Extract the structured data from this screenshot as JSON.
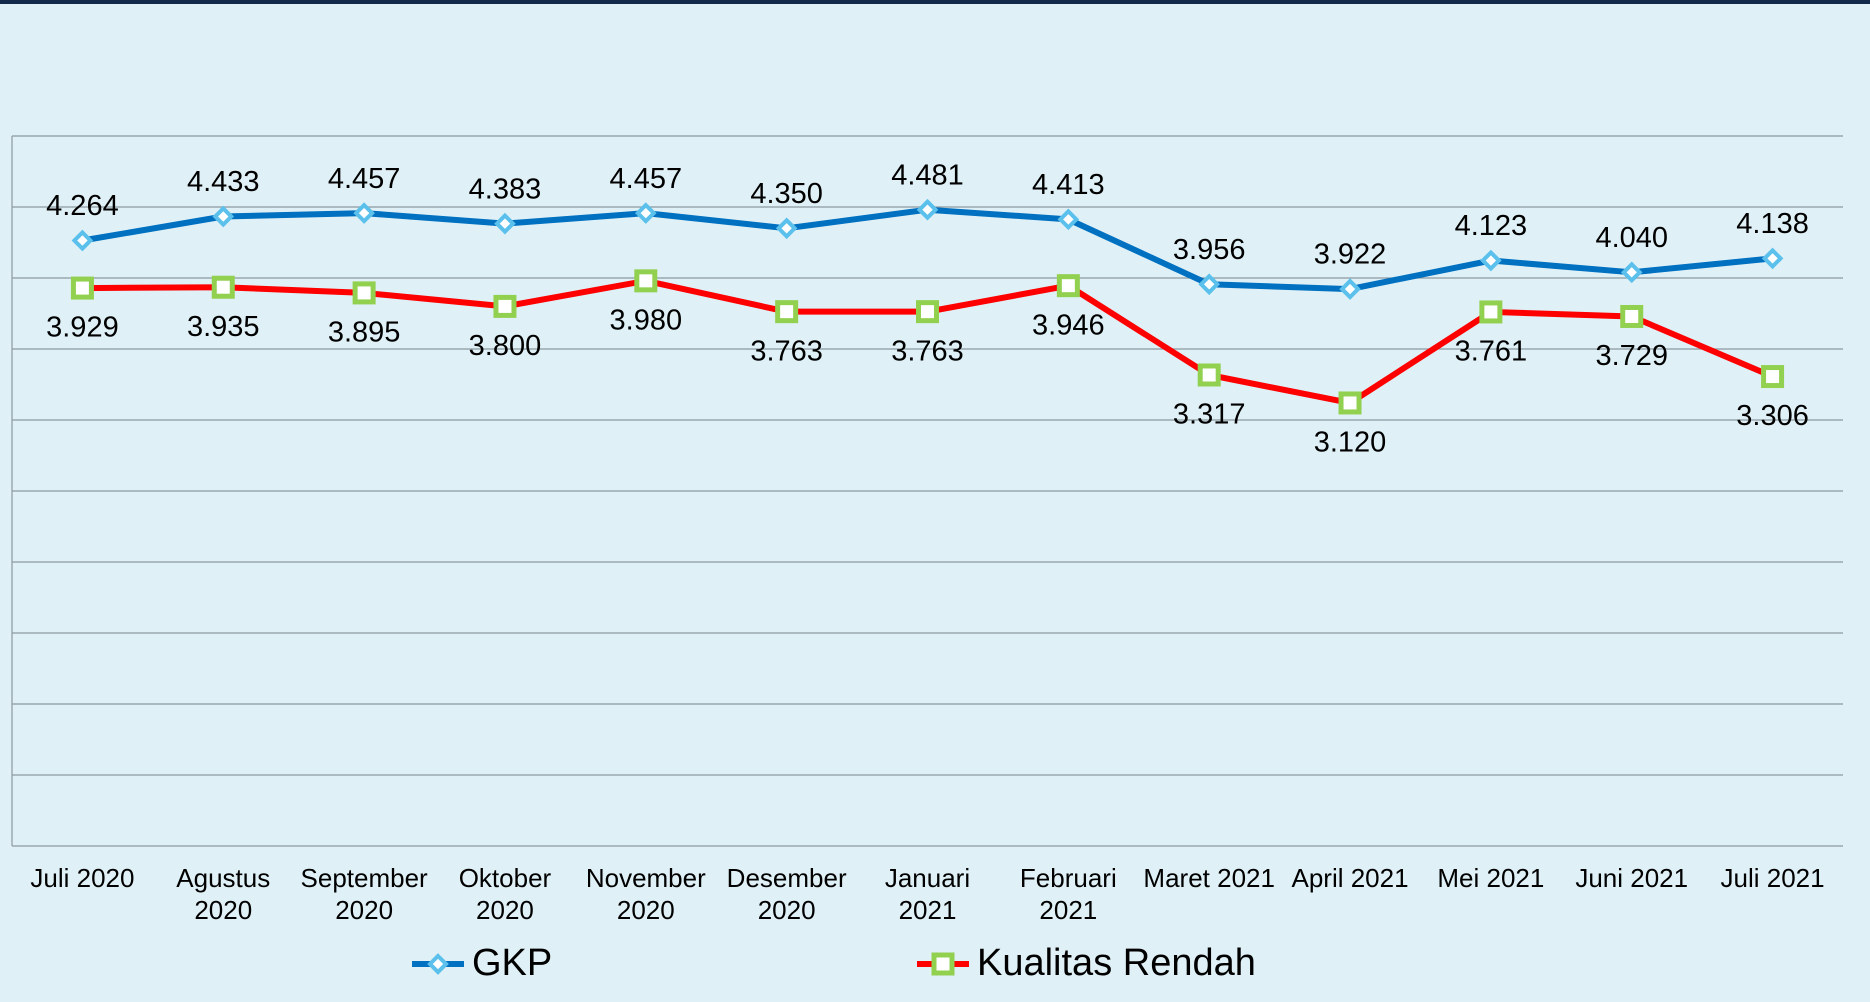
{
  "chart_data": {
    "type": "line",
    "categories": [
      "Juli 2020",
      "Agustus 2020",
      "September 2020",
      "Oktober 2020",
      "November 2020",
      "Desember 2020",
      "Januari 2021",
      "Februari 2021",
      "Maret 2021",
      "April 2021",
      "Mei 2021",
      "Juni 2021",
      "Juli 2021"
    ],
    "series": [
      {
        "name": "GKP",
        "color": "#0070c0",
        "marker": "diamond",
        "marker_color": "#5bc0eb",
        "values": [
          4264,
          4433,
          4457,
          4383,
          4457,
          4350,
          4481,
          4413,
          3956,
          3922,
          4123,
          4040,
          4138
        ],
        "value_labels": [
          "4.264",
          "4.433",
          "4.457",
          "4.383",
          "4.457",
          "4.350",
          "4.481",
          "4.413",
          "3.956",
          "3.922",
          "4.123",
          "4.040",
          "4.138"
        ]
      },
      {
        "name": "Kualitas Rendah",
        "color": "#ff0000",
        "marker": "square",
        "marker_color": "#92d050",
        "values": [
          3929,
          3935,
          3895,
          3800,
          3980,
          3763,
          3763,
          3946,
          3317,
          3120,
          3761,
          3729,
          3306
        ],
        "value_labels": [
          "3.929",
          "3.935",
          "3.895",
          "3.800",
          "3.980",
          "3.763",
          "3.763",
          "3.946",
          "3.317",
          "3.120",
          "3.761",
          "3.729",
          "3.306"
        ]
      }
    ],
    "ylim": [
      0,
      5000
    ],
    "yticks": [
      0,
      500,
      1000,
      1500,
      2000,
      2500,
      3000,
      3500,
      4000,
      4500,
      5000
    ],
    "grid": true
  }
}
